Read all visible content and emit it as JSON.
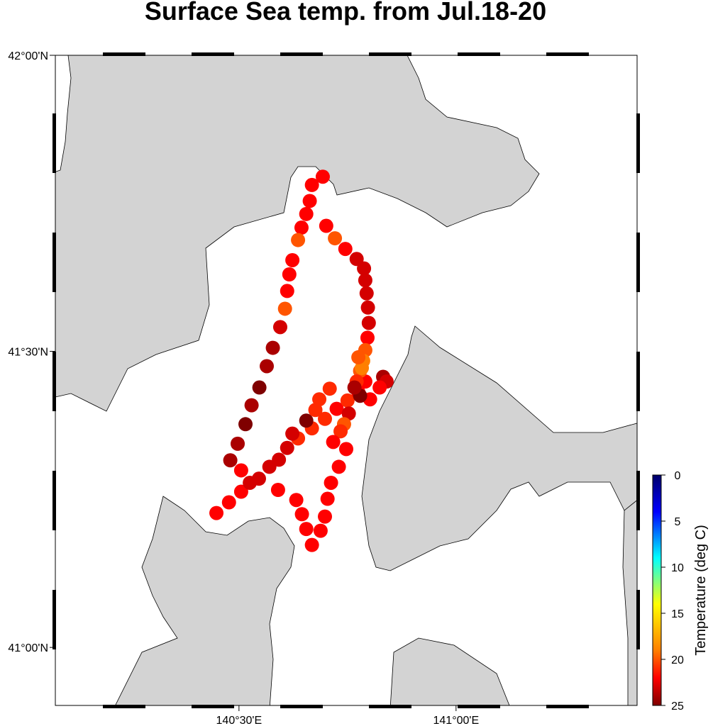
{
  "chart_data": {
    "type": "scatter",
    "title": "Surface Sea temp. from Jul.18-20",
    "xlim": [
      140.077,
      141.417
    ],
    "ylim": [
      40.902,
      42.0
    ],
    "xticks": [
      {
        "value": 140.5,
        "label": "140°30'E"
      },
      {
        "value": 141.0,
        "label": "141°00'E"
      }
    ],
    "yticks": [
      {
        "value": 41.0,
        "label": "41°00'N"
      },
      {
        "value": 41.5,
        "label": "41°30'N"
      },
      {
        "value": 42.0,
        "label": "42°00'N"
      }
    ],
    "x": [
      140.693,
      140.668,
      140.663,
      140.655,
      140.644,
      140.636,
      140.623,
      140.616,
      140.611,
      140.606,
      140.595,
      140.578,
      140.564,
      140.547,
      140.529,
      140.515,
      140.497,
      140.48,
      140.448,
      140.477,
      140.505,
      140.525,
      140.546,
      140.57,
      140.592,
      140.611,
      140.636,
      140.668,
      140.698,
      140.725,
      140.75,
      140.775,
      140.791,
      140.701,
      140.721,
      140.745,
      140.771,
      140.788,
      140.791,
      140.794,
      140.797,
      140.799,
      140.796,
      140.791,
      140.786,
      140.779,
      140.771,
      140.783,
      140.775,
      140.832,
      140.84,
      140.824,
      140.802,
      140.779,
      140.766,
      140.753,
      140.742,
      140.734,
      140.717,
      140.747,
      140.73,
      140.712,
      140.704,
      140.698,
      140.688,
      140.668,
      140.655,
      140.645,
      140.632,
      140.59,
      140.505,
      140.655,
      140.623,
      140.709,
      140.685,
      140.676
    ],
    "y": [
      41.795,
      41.781,
      41.754,
      41.732,
      41.709,
      41.688,
      41.654,
      41.63,
      41.602,
      41.572,
      41.541,
      41.506,
      41.475,
      41.439,
      41.409,
      41.377,
      41.344,
      41.316,
      41.227,
      41.245,
      41.263,
      41.278,
      41.285,
      41.305,
      41.317,
      41.337,
      41.353,
      41.37,
      41.386,
      41.403,
      41.417,
      41.431,
      41.449,
      41.712,
      41.691,
      41.673,
      41.656,
      41.64,
      41.62,
      41.598,
      41.574,
      41.548,
      41.523,
      41.502,
      41.484,
      41.467,
      41.449,
      41.472,
      41.49,
      41.457,
      41.449,
      41.439,
      41.419,
      41.425,
      41.439,
      41.395,
      41.377,
      41.365,
      41.347,
      41.335,
      41.305,
      41.278,
      41.251,
      41.221,
      41.197,
      41.173,
      41.2,
      41.225,
      41.249,
      41.266,
      41.299,
      41.383,
      41.361,
      41.437,
      41.419,
      41.401
    ],
    "values": [
      22,
      22,
      22,
      22,
      22,
      20,
      22,
      22,
      22,
      20,
      23,
      24,
      24,
      25,
      24,
      25,
      24,
      24,
      22,
      22,
      22,
      23,
      23,
      23,
      23,
      23,
      21,
      21,
      21,
      22,
      21,
      22,
      22,
      22,
      20,
      22,
      23,
      23,
      23,
      23,
      23,
      23,
      22,
      20,
      19,
      20,
      21,
      19,
      20,
      24,
      23,
      22,
      22,
      25,
      24,
      23,
      20,
      21,
      22,
      22,
      22,
      22,
      22,
      22,
      22,
      22,
      22,
      22,
      22,
      22,
      22,
      25,
      23,
      21,
      21,
      21
    ],
    "colorbar": {
      "label": "Temperature (deg C)",
      "lim": [
        0,
        25
      ],
      "ticks": [
        0,
        5,
        10,
        15,
        20,
        25
      ],
      "colormap": [
        {
          "value": 0,
          "color": "#00006a"
        },
        {
          "value": 4,
          "color": "#0000ff"
        },
        {
          "value": 9,
          "color": "#00ffff"
        },
        {
          "value": 14,
          "color": "#ffff00"
        },
        {
          "value": 19,
          "color": "#ff7f00"
        },
        {
          "value": 22,
          "color": "#ff0000"
        },
        {
          "value": 25,
          "color": "#7f0000"
        }
      ]
    },
    "land_color": "#d3d3d3"
  }
}
